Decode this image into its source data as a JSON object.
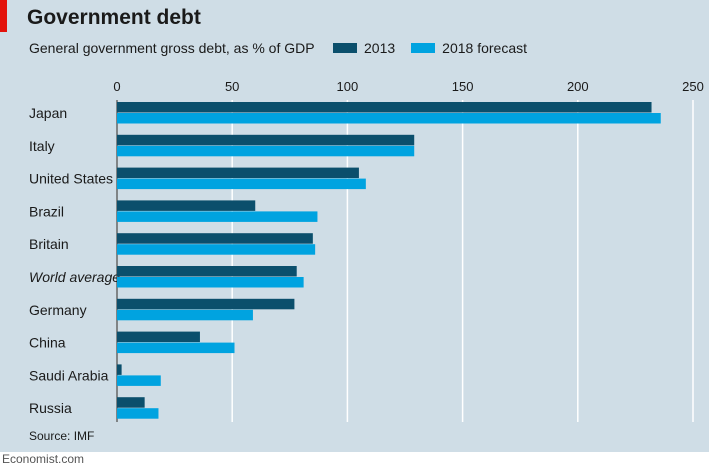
{
  "header": {
    "title": "Government debt",
    "subtitle": "General government gross debt, as % of GDP"
  },
  "source": "Source: IMF",
  "footer": "Economist.com",
  "colors": {
    "background": "#cfdde6",
    "series_2013": "#0b4f6c",
    "series_2018": "#00a3e0",
    "gridline": "#ffffff",
    "brand_red": "#e3120b"
  },
  "chart_data": {
    "type": "bar",
    "orientation": "horizontal",
    "title": "Government debt",
    "subtitle": "General government gross debt, as % of GDP",
    "xlim": [
      0,
      250
    ],
    "xticks": [
      0,
      50,
      100,
      150,
      200,
      250
    ],
    "grid": true,
    "legend_position": "top",
    "categories": [
      "Japan",
      "Italy",
      "United States",
      "Brazil",
      "Britain",
      "World average",
      "Germany",
      "China",
      "Saudi Arabia",
      "Russia"
    ],
    "italic_categories": [
      "World average"
    ],
    "series": [
      {
        "name": "2013",
        "color": "#0b4f6c",
        "values": [
          232,
          129,
          105,
          60,
          85,
          78,
          77,
          36,
          2,
          12
        ]
      },
      {
        "name": "2018 forecast",
        "color": "#00a3e0",
        "values": [
          236,
          129,
          108,
          87,
          86,
          81,
          59,
          51,
          19,
          18
        ]
      }
    ]
  }
}
